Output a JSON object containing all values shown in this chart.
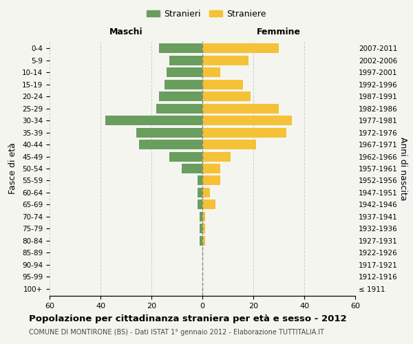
{
  "age_groups": [
    "100+",
    "95-99",
    "90-94",
    "85-89",
    "80-84",
    "75-79",
    "70-74",
    "65-69",
    "60-64",
    "55-59",
    "50-54",
    "45-49",
    "40-44",
    "35-39",
    "30-34",
    "25-29",
    "20-24",
    "15-19",
    "10-14",
    "5-9",
    "0-4"
  ],
  "birth_years": [
    "≤ 1911",
    "1912-1916",
    "1917-1921",
    "1922-1926",
    "1927-1931",
    "1932-1936",
    "1937-1941",
    "1942-1946",
    "1947-1951",
    "1952-1956",
    "1957-1961",
    "1962-1966",
    "1967-1971",
    "1972-1976",
    "1977-1981",
    "1982-1986",
    "1987-1991",
    "1992-1996",
    "1997-2001",
    "2002-2006",
    "2007-2011"
  ],
  "maschi": [
    0,
    0,
    0,
    0,
    1,
    1,
    1,
    2,
    2,
    2,
    8,
    13,
    25,
    26,
    38,
    18,
    17,
    15,
    14,
    13,
    17
  ],
  "femmine": [
    0,
    0,
    0,
    0,
    1,
    1,
    1,
    5,
    3,
    7,
    7,
    11,
    21,
    33,
    35,
    30,
    19,
    16,
    7,
    18,
    30
  ],
  "male_color": "#6a9e5e",
  "female_color": "#f5c136",
  "background_color": "#f5f5f0",
  "grid_color": "#cccccc",
  "title": "Popolazione per cittadinanza straniera per età e sesso - 2012",
  "subtitle": "COMUNE DI MONTIRONE (BS) - Dati ISTAT 1° gennaio 2012 - Elaborazione TUTTITALIA.IT",
  "ylabel_left": "Fasce di età",
  "ylabel_right": "Anni di nascita",
  "xlabel_left": "Maschi",
  "xlabel_top_right": "Femmine",
  "legend_stranieri": "Stranieri",
  "legend_straniere": "Straniere",
  "xlim": 60,
  "bar_height": 0.8
}
